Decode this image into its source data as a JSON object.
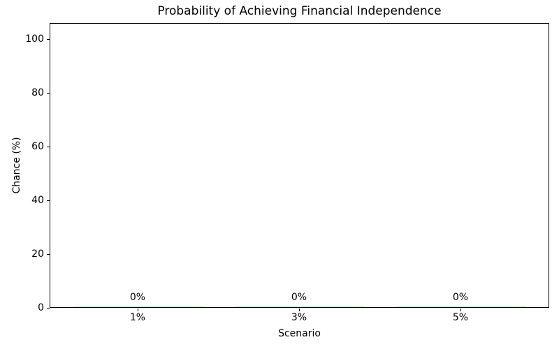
{
  "chart_data": {
    "type": "bar",
    "title": "Probability of Achieving Financial Independence",
    "xlabel": "Scenario",
    "ylabel": "Chance (%)",
    "categories": [
      "1%",
      "3%",
      "5%"
    ],
    "values": [
      0,
      0,
      0
    ],
    "bar_labels": [
      "0%",
      "0%",
      "0%"
    ],
    "yticks": [
      0,
      20,
      40,
      60,
      80,
      100
    ],
    "ylim": [
      0,
      106
    ],
    "bar_color": "#90EE90",
    "bar_width_fraction": 0.8,
    "grid": false,
    "legend": null,
    "background_color": "#ffffff",
    "text_color": "#000000"
  }
}
